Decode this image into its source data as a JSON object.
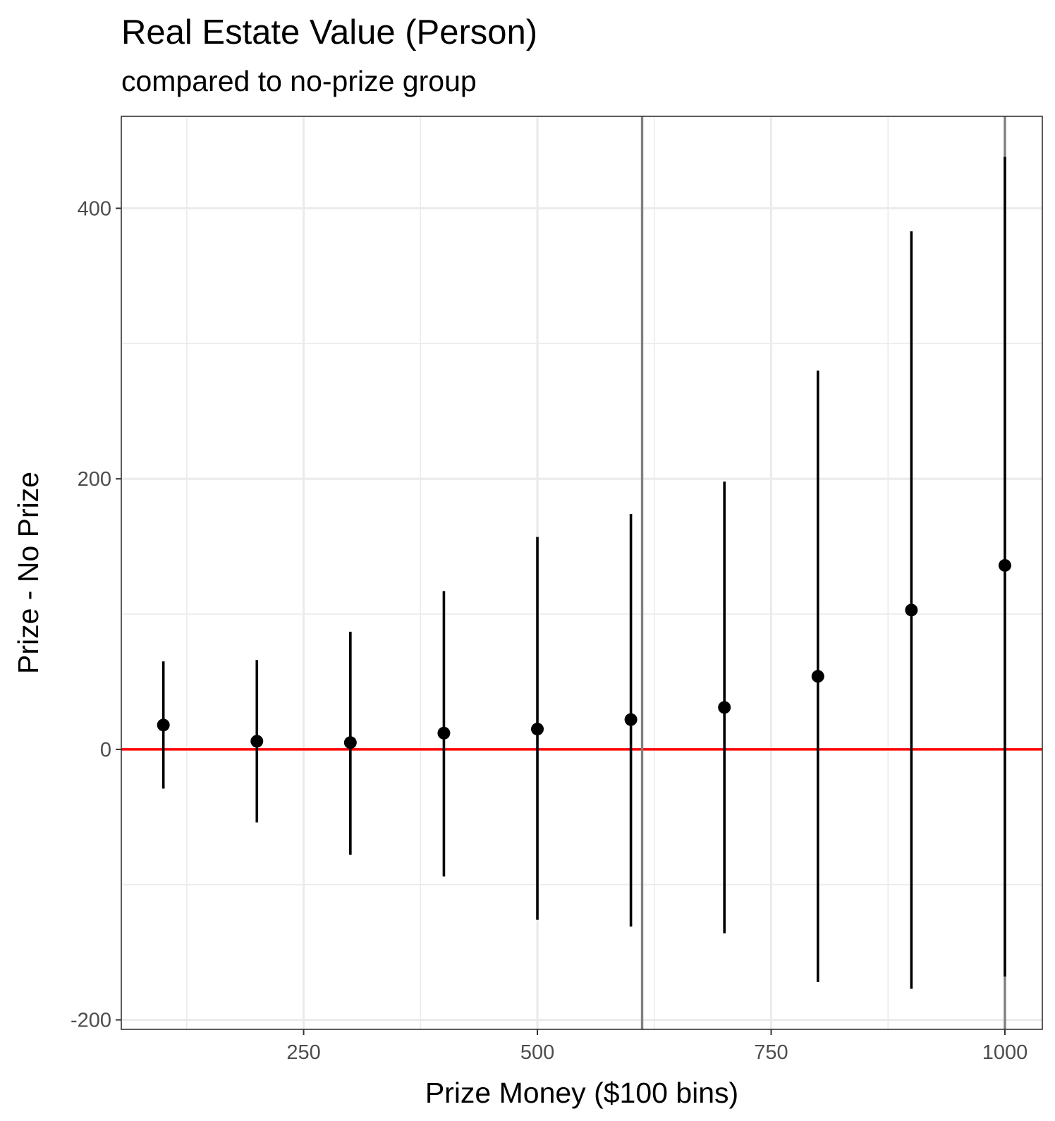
{
  "chart_data": {
    "type": "scatter",
    "title": "Real Estate Value (Person)",
    "subtitle": "compared to no-prize group",
    "xlabel": "Prize Money ($100 bins)",
    "ylabel": "Prize - No Prize",
    "xlim": [
      55,
      1040
    ],
    "ylim": [
      -207,
      468
    ],
    "xticks": [
      250,
      500,
      750,
      1000
    ],
    "xtick_labels": [
      "250",
      "500",
      "750",
      "1000"
    ],
    "yticks": [
      -200,
      0,
      200,
      400
    ],
    "ytick_labels": [
      "-200",
      "0",
      "200",
      "400"
    ],
    "grid": true,
    "reference_lines": {
      "horizontal": {
        "y": 0,
        "color": "#ff0000"
      },
      "vertical": [
        {
          "x": 612,
          "color": "#808080"
        },
        {
          "x": 1000,
          "color": "#808080"
        }
      ]
    },
    "points": [
      {
        "x": 100,
        "y": 18,
        "lower": -29,
        "upper": 65
      },
      {
        "x": 200,
        "y": 6,
        "lower": -54,
        "upper": 66
      },
      {
        "x": 300,
        "y": 5,
        "lower": -78,
        "upper": 87
      },
      {
        "x": 400,
        "y": 12,
        "lower": -94,
        "upper": 117
      },
      {
        "x": 500,
        "y": 15,
        "lower": -126,
        "upper": 157
      },
      {
        "x": 600,
        "y": 22,
        "lower": -131,
        "upper": 174
      },
      {
        "x": 700,
        "y": 31,
        "lower": -136,
        "upper": 198
      },
      {
        "x": 800,
        "y": 54,
        "lower": -172,
        "upper": 280
      },
      {
        "x": 900,
        "y": 103,
        "lower": -177,
        "upper": 383
      },
      {
        "x": 1000,
        "y": 136,
        "lower": -168,
        "upper": 438
      }
    ],
    "colors": {
      "points": "#000000",
      "zero_line": "#ff0000",
      "vertical_lines": "#808080",
      "grid": "#ebebeb",
      "panel_border": "#333333"
    }
  }
}
